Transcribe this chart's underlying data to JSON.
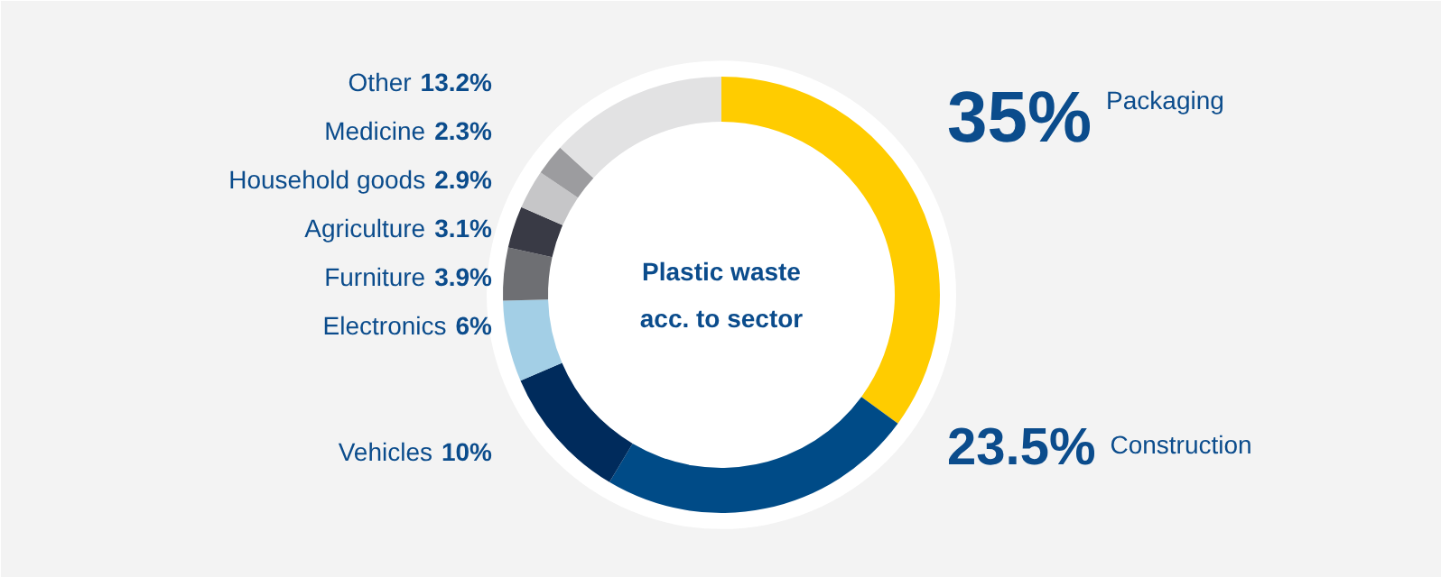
{
  "chart_data": {
    "type": "donut",
    "title": "Plastic waste\nacc. to sector",
    "categories": [
      "Packaging",
      "Construction",
      "Vehicles",
      "Electronics",
      "Furniture",
      "Agriculture",
      "Household goods",
      "Medicine",
      "Other"
    ],
    "values": [
      35,
      23.5,
      10,
      6,
      3.9,
      3.1,
      2.9,
      2.3,
      13.2
    ],
    "colors": [
      "#ffcc00",
      "#004b87",
      "#002b5c",
      "#a3cfe6",
      "#6e6f73",
      "#393a45",
      "#c6c6c8",
      "#9c9c9f",
      "#e2e2e3"
    ],
    "value_labels": [
      "35%",
      "23.5%",
      "10%",
      "6%",
      "3.9%",
      "3.1%",
      "2.9%",
      "2.3%",
      "13.2%"
    ]
  }
}
